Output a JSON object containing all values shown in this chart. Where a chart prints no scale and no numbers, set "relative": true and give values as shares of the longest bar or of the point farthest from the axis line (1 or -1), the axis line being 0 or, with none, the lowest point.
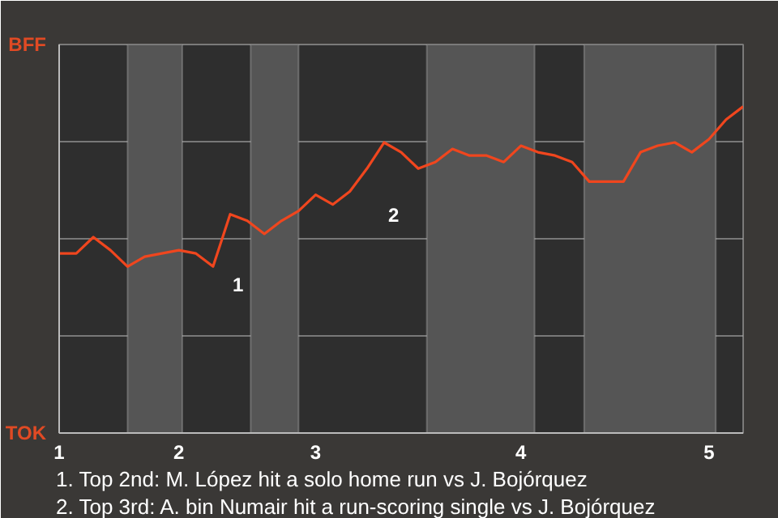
{
  "chart_data": {
    "type": "line",
    "relative": true,
    "categories": [
      "1",
      null,
      null,
      null,
      null,
      null,
      null,
      "2",
      null,
      null,
      null,
      null,
      null,
      null,
      null,
      "3",
      null,
      null,
      null,
      null,
      null,
      null,
      null,
      null,
      null,
      null,
      null,
      "4",
      null,
      null,
      null,
      null,
      null,
      null,
      null,
      null,
      null,
      null,
      "5",
      null,
      null
    ],
    "series": [
      {
        "color": "#f0461e",
        "values": [
          0.55,
          0.55,
          0.6,
          0.56,
          0.51,
          0.54,
          0.55,
          0.56,
          0.55,
          0.51,
          0.67,
          0.65,
          0.61,
          0.65,
          0.68,
          0.73,
          0.7,
          0.74,
          0.81,
          0.89,
          0.86,
          0.81,
          0.83,
          0.87,
          0.85,
          0.85,
          0.83,
          0.88,
          0.86,
          0.85,
          0.83,
          0.77,
          0.77,
          0.77,
          0.86,
          0.88,
          0.89,
          0.86,
          0.9,
          0.96,
          1
        ]
      }
    ],
    "grid": "y",
    "annotations": [
      "BFF",
      "TOK",
      "1",
      "2",
      "1. Top 2nd: M. López hit a solo home run vs J. Bojórquez",
      "2. Top 3rd: A. bin Numair hit a run-scoring single vs J. Bojórquez"
    ]
  }
}
